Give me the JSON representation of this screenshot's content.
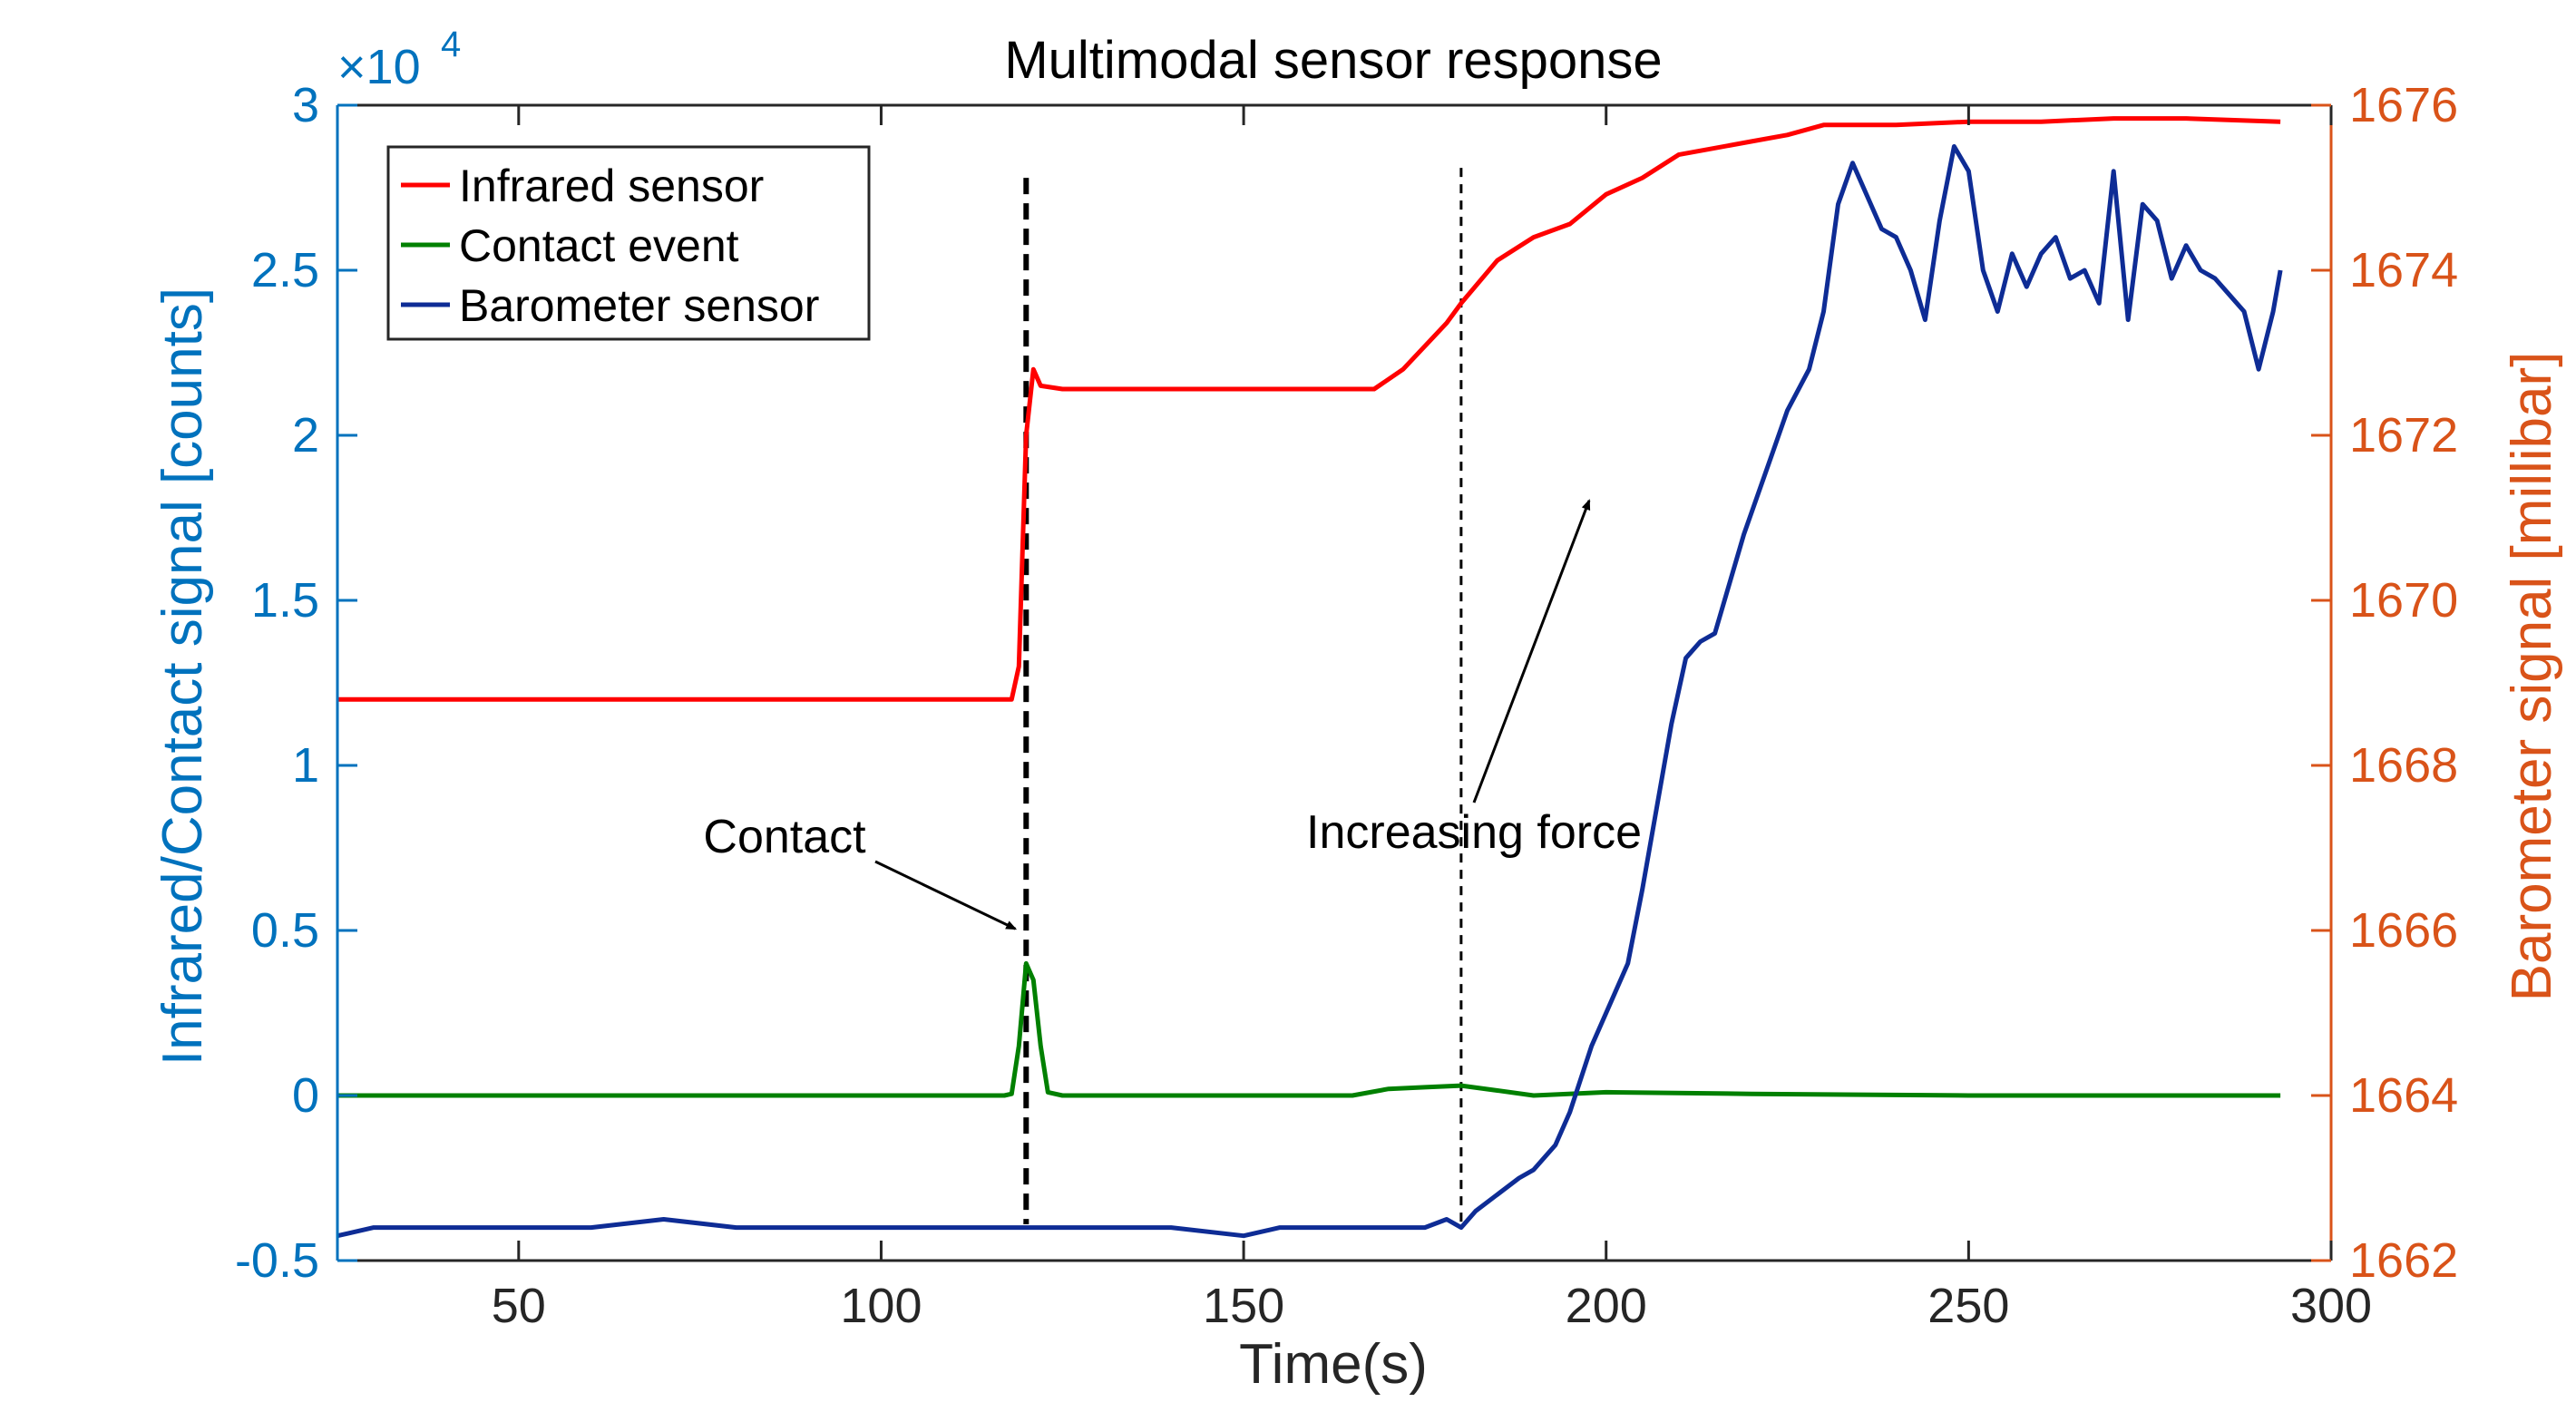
{
  "chart_data": {
    "type": "line",
    "title": "Multimodal sensor response",
    "xlabel": "Time(s)",
    "ylabel_left": "Infrared/Contact signal [counts]",
    "ylabel_right": "Barometer signal [millibar]",
    "xlim": [
      25,
      300
    ],
    "ylim_left": [
      -5000,
      30000
    ],
    "ylim_right": [
      1662,
      1676
    ],
    "x_ticks": [
      "50",
      "100",
      "150",
      "200",
      "250",
      "300"
    ],
    "y_ticks_left": [
      "-0.5",
      "0",
      "0.5",
      "1",
      "1.5",
      "2",
      "2.5",
      "3"
    ],
    "y_ticks_right": [
      "1662",
      "1664",
      "1666",
      "1668",
      "1670",
      "1672",
      "1674",
      "1676"
    ],
    "left_exponent_base": "×10",
    "left_exponent_power": "4",
    "grid": false,
    "legend_position": "top-left",
    "colors": {
      "left_axis": "#0072BD",
      "right_axis": "#D95319",
      "infrared": "#FF0000",
      "contact": "#008000",
      "barometer": "#0E2C95",
      "axes": "#262626"
    },
    "series": [
      {
        "name": "Infrared sensor",
        "axis": "left",
        "x": [
          25,
          60,
          100,
          118,
          119,
          120,
          121,
          122,
          125,
          150,
          168,
          172,
          175,
          178,
          180,
          185,
          190,
          195,
          200,
          205,
          210,
          215,
          220,
          225,
          230,
          240,
          250,
          260,
          270,
          280,
          293
        ],
        "values": [
          12000,
          12000,
          12000,
          12000,
          13000,
          20000,
          22000,
          21500,
          21400,
          21400,
          21400,
          22000,
          22700,
          23400,
          24000,
          25300,
          26000,
          26400,
          27300,
          27800,
          28500,
          28700,
          28900,
          29100,
          29400,
          29400,
          29500,
          29500,
          29600,
          29600,
          29500
        ]
      },
      {
        "name": "Contact event",
        "axis": "left",
        "x": [
          25,
          60,
          100,
          117,
          118,
          119,
          120,
          121,
          122,
          123,
          125,
          150,
          165,
          170,
          175,
          180,
          185,
          190,
          200,
          220,
          250,
          293
        ],
        "values": [
          0,
          0,
          0,
          0,
          50,
          1500,
          4000,
          3500,
          1500,
          100,
          0,
          0,
          0,
          200,
          250,
          300,
          150,
          0,
          100,
          50,
          0,
          0
        ]
      },
      {
        "name": "Barometer sensor",
        "axis": "right",
        "x": [
          25,
          30,
          40,
          50,
          60,
          70,
          80,
          90,
          100,
          110,
          120,
          130,
          140,
          150,
          155,
          160,
          165,
          170,
          175,
          178,
          180,
          182,
          185,
          188,
          190,
          193,
          195,
          198,
          200,
          203,
          205,
          207,
          209,
          211,
          213,
          215,
          217,
          219,
          221,
          223,
          225,
          228,
          230,
          232,
          234,
          236,
          238,
          240,
          242,
          244,
          246,
          248,
          250,
          252,
          254,
          256,
          258,
          260,
          262,
          264,
          266,
          268,
          270,
          272,
          274,
          276,
          278,
          280,
          282,
          284,
          286,
          288,
          290,
          292,
          293
        ],
        "values": [
          1662.3,
          1662.4,
          1662.4,
          1662.4,
          1662.4,
          1662.5,
          1662.4,
          1662.4,
          1662.4,
          1662.4,
          1662.4,
          1662.4,
          1662.4,
          1662.3,
          1662.4,
          1662.4,
          1662.4,
          1662.4,
          1662.4,
          1662.5,
          1662.4,
          1662.6,
          1662.8,
          1663.0,
          1663.1,
          1663.4,
          1663.8,
          1664.6,
          1665.0,
          1665.6,
          1666.5,
          1667.5,
          1668.5,
          1669.3,
          1669.5,
          1669.6,
          1670.2,
          1670.8,
          1671.3,
          1671.8,
          1672.3,
          1672.8,
          1673.5,
          1674.8,
          1675.3,
          1674.9,
          1674.5,
          1674.4,
          1674.0,
          1673.4,
          1674.6,
          1675.5,
          1675.2,
          1674.0,
          1673.5,
          1674.2,
          1673.8,
          1674.2,
          1674.4,
          1673.9,
          1674.0,
          1673.6,
          1675.2,
          1673.4,
          1674.8,
          1674.6,
          1673.9,
          1674.3,
          1674.0,
          1673.9,
          1673.7,
          1673.5,
          1672.8,
          1673.5,
          1674.0
        ]
      }
    ],
    "annotations": [
      {
        "text": "Contact",
        "x": 120,
        "y_left": 4500
      },
      {
        "text": "Increasing force",
        "x": 180,
        "y_left": 8000
      }
    ],
    "vertical_markers": [
      {
        "x": 120,
        "style": "thick-dashed"
      },
      {
        "x": 180,
        "style": "thin-dashed"
      }
    ]
  }
}
